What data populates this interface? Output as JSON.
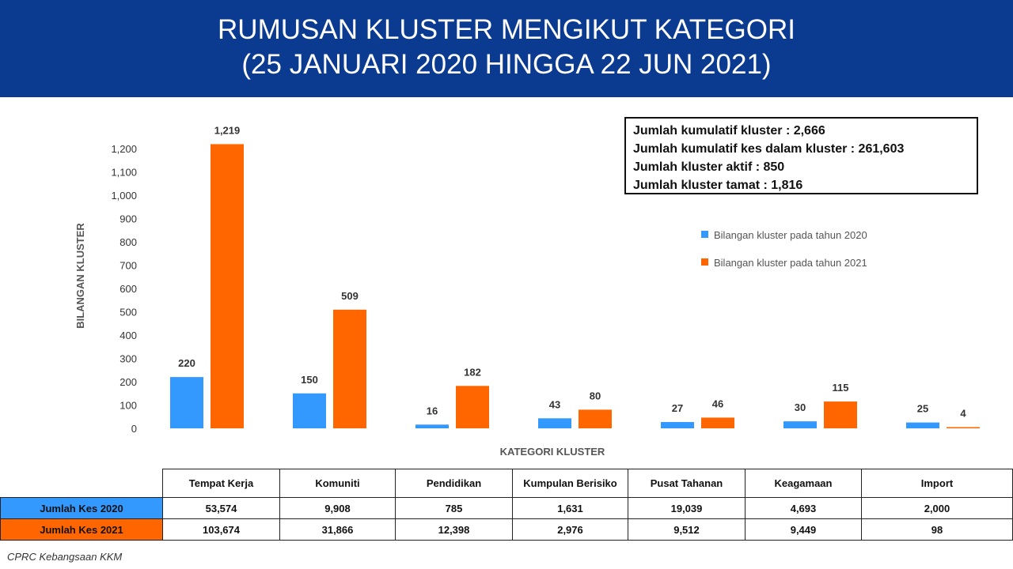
{
  "header": {
    "title_line1": "RUMUSAN KLUSTER MENGIKUT KATEGORI",
    "title_line2": "(25 JANUARI 2020 HINGGA 22 JUN 2021)"
  },
  "info_box": [
    "Jumlah kumulatif kluster : 2,666",
    "Jumlah kumulatif kes dalam kluster : 261,603",
    "Jumlah kluster aktif : 850",
    "Jumlah kluster tamat : 1,816"
  ],
  "colors": {
    "header_bg": "#0b3a91",
    "series_2020": "#3399ff",
    "series_2021": "#ff6600"
  },
  "chart_data": {
    "type": "bar",
    "xlabel": "KATEGORI KLUSTER",
    "ylabel": "BILANGAN KLUSTER",
    "ylim": [
      0,
      1200
    ],
    "yticks": [
      "0",
      "100",
      "200",
      "300",
      "400",
      "500",
      "600",
      "700",
      "800",
      "900",
      "1,000",
      "1,100",
      "1,200"
    ],
    "categories": [
      "Tempat Kerja",
      "Komuniti",
      "Pendidikan",
      "Kumpulan Berisiko",
      "Pusat Tahanan",
      "Keagamaan",
      "Import"
    ],
    "series": [
      {
        "name": "Bilangan kluster pada tahun 2020",
        "color": "#3399ff",
        "values": [
          220,
          150,
          16,
          43,
          27,
          30,
          25
        ],
        "labels": [
          "220",
          "150",
          "16",
          "43",
          "27",
          "30",
          "25"
        ]
      },
      {
        "name": "Bilangan kluster pada tahun 2021",
        "color": "#ff6600",
        "values": [
          1219,
          509,
          182,
          80,
          46,
          115,
          4
        ],
        "labels": [
          "1,219",
          "509",
          "182",
          "80",
          "46",
          "115",
          "4"
        ]
      }
    ],
    "legend_position": "right",
    "grid": false
  },
  "table": {
    "columns": [
      "Tempat Kerja",
      "Komuniti",
      "Pendidikan",
      "Kumpulan Berisiko",
      "Pusat Tahanan",
      "Keagamaan",
      "Import"
    ],
    "rows": [
      {
        "label": "Jumlah Kes 2020",
        "values": [
          "53,574",
          "9,908",
          "785",
          "1,631",
          "19,039",
          "4,693",
          "2,000"
        ]
      },
      {
        "label": "Jumlah Kes 2021",
        "values": [
          "103,674",
          "31,866",
          "12,398",
          "2,976",
          "9,512",
          "9,449",
          "98"
        ]
      }
    ]
  },
  "footer": {
    "source": "CPRC Kebangsaan KKM"
  }
}
